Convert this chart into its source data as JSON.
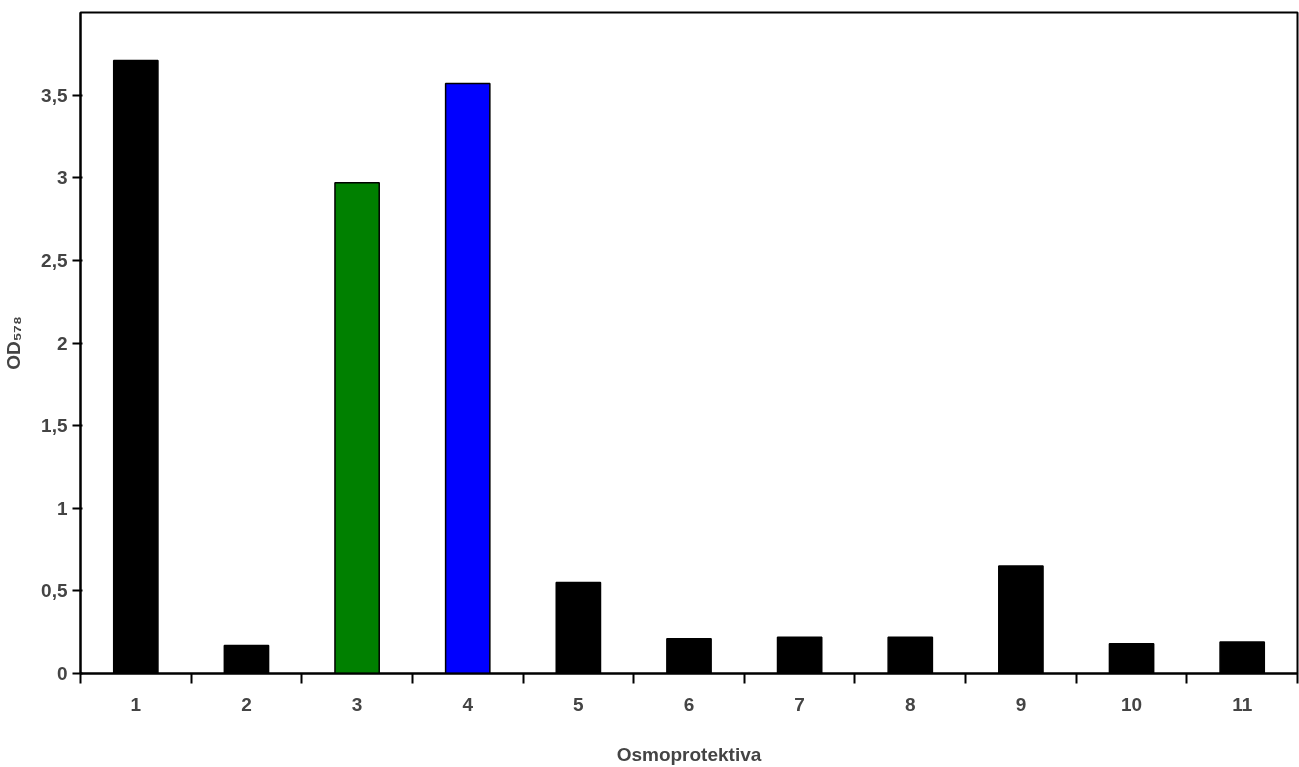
{
  "chart_data": {
    "type": "bar",
    "xlabel": "Osmoprotektiva",
    "ylabel": "OD₅₇₈",
    "categories": [
      "1",
      "2",
      "3",
      "4",
      "5",
      "6",
      "7",
      "8",
      "9",
      "10",
      "11"
    ],
    "values": [
      3.71,
      0.17,
      2.97,
      3.57,
      0.55,
      0.21,
      0.22,
      0.22,
      0.65,
      0.18,
      0.19
    ],
    "colors": [
      "#000000",
      "#000000",
      "#008000",
      "#0000ff",
      "#000000",
      "#000000",
      "#000000",
      "#000000",
      "#000000",
      "#000000",
      "#000000"
    ],
    "ylim": [
      0,
      4
    ],
    "yticks": [
      0,
      {
        "value": 0.5,
        "label": "0,5"
      },
      1,
      {
        "value": 1.5,
        "label": "1,5"
      },
      2,
      {
        "value": 2.5,
        "label": "2,5"
      },
      3,
      {
        "value": 3.5,
        "label": "3,5"
      }
    ],
    "grid": false
  }
}
